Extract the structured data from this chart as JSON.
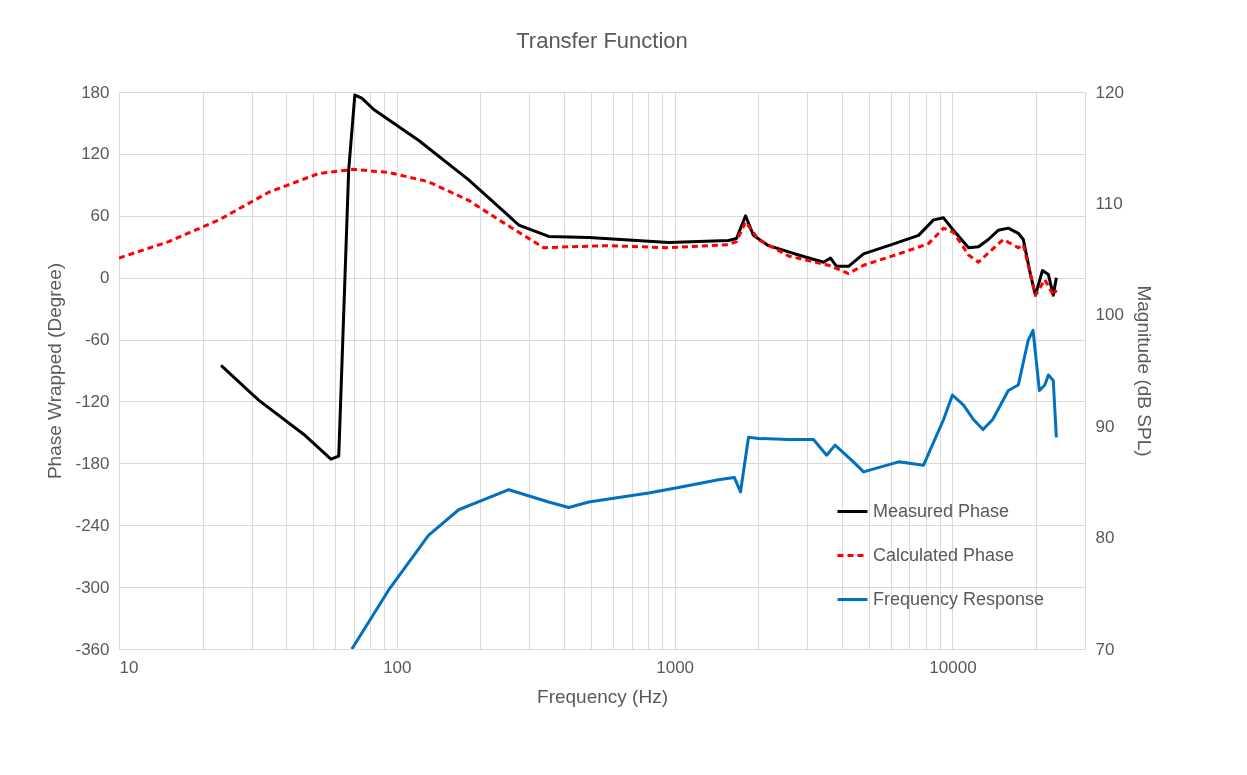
{
  "chart_data": {
    "type": "line",
    "title": "Transfer Function",
    "xlabel": "Frequency (Hz)",
    "ylabel": "Phase Wrapped (Degree)",
    "y2label": "Magnitude (dB SPL)",
    "log": "x",
    "grid": true,
    "legend": "bottom right",
    "xlim": [
      10,
      30000
    ],
    "xticks": [
      10,
      {
        "value": 20,
        "label": null
      },
      {
        "value": 30,
        "label": null
      },
      {
        "value": 40,
        "label": null
      },
      {
        "value": 50,
        "label": null
      },
      {
        "value": 60,
        "label": null
      },
      {
        "value": 70,
        "label": null
      },
      {
        "value": 80,
        "label": null
      },
      {
        "value": 90,
        "label": null
      },
      100,
      {
        "value": 200,
        "label": null
      },
      {
        "value": 300,
        "label": null
      },
      {
        "value": 400,
        "label": null
      },
      {
        "value": 500,
        "label": null
      },
      {
        "value": 600,
        "label": null
      },
      {
        "value": 700,
        "label": null
      },
      {
        "value": 800,
        "label": null
      },
      {
        "value": 900,
        "label": null
      },
      1000,
      {
        "value": 2000,
        "label": null
      },
      {
        "value": 3000,
        "label": null
      },
      {
        "value": 4000,
        "label": null
      },
      {
        "value": 5000,
        "label": null
      },
      {
        "value": 6000,
        "label": null
      },
      {
        "value": 7000,
        "label": null
      },
      {
        "value": 8000,
        "label": null
      },
      {
        "value": 9000,
        "label": null
      },
      10000,
      {
        "value": 20000,
        "label": null
      },
      {
        "value": 30000,
        "label": null
      }
    ],
    "ylim": [
      -360,
      180
    ],
    "yticks": [
      -360,
      -300,
      -240,
      -180,
      -120,
      -60,
      0,
      60,
      120,
      180
    ],
    "y2lim": [
      70,
      120
    ],
    "y2ticks": [
      70,
      80,
      90,
      100,
      110,
      120
    ],
    "series": [
      {
        "name": "Measured Phase",
        "color": "#000000",
        "line_style": "solid",
        "x": [
          23.3,
          31.9,
          46.3,
          57.9,
          61.8,
          67.1,
          70.6,
          74.8,
          82.6,
          120,
          181,
          275,
          352,
          491,
          951,
          1563,
          1670,
          1800,
          1921,
          2178,
          2793,
          3437,
          3641,
          3827,
          4227,
          4786,
          5888,
          7550,
          8550,
          9290,
          10080,
          11430,
          12410,
          13470,
          14630,
          15890,
          17260,
          17990,
          19090,
          19900,
          21090,
          22150,
          23060,
          23660
        ],
        "values": [
          -85,
          -119,
          -152,
          -176,
          -173,
          104,
          177,
          174,
          163,
          133,
          95,
          51,
          40,
          39,
          34,
          36,
          38,
          60,
          41,
          31,
          22,
          15,
          19,
          11,
          11,
          23,
          31,
          41,
          56,
          58,
          46,
          29,
          30,
          37,
          46,
          48,
          43,
          37,
          3,
          -17,
          7,
          3,
          -17,
          0
        ]
      },
      {
        "name": "Calculated Phase",
        "color": "#ff0000",
        "line_style": "dashed",
        "x": [
          10,
          15.1,
          22.9,
          34.7,
          52.4,
          70,
          93.5,
          130,
          181,
          253,
          338,
          416,
          580,
          951,
          1563,
          1670,
          1800,
          2005,
          2570,
          3580,
          4227,
          4786,
          6400,
          8200,
          9290,
          10080,
          11430,
          12410,
          13470,
          15240,
          17260,
          17990,
          19090,
          19900,
          21500,
          23060,
          23660
        ],
        "values": [
          19,
          35,
          56,
          83,
          101,
          105,
          102,
          93,
          75,
          50,
          29,
          30,
          31,
          29,
          32,
          35,
          54,
          37,
          21,
          12,
          4,
          12,
          23,
          33,
          48,
          44,
          22,
          15,
          24,
          37,
          29,
          32,
          3,
          -17,
          -2,
          -17,
          -12
        ]
      },
      {
        "name": "Frequency Response",
        "color": "#0070c0",
        "line_style": "solid",
        "axis": "y2",
        "x": [
          68.9,
          93.5,
          130,
          167,
          253,
          352,
          416,
          491,
          806,
          1032,
          1438,
          1640,
          1726,
          1845,
          2005,
          2570,
          3162,
          3524,
          3780,
          4400,
          4786,
          6400,
          7870,
          9290,
          10000,
          10960,
          11900,
          12880,
          13960,
          15890,
          17260,
          18730,
          19500,
          20560,
          21500,
          22150,
          23060,
          23660
        ],
        "values": [
          70,
          75.3,
          80.2,
          82.5,
          84.3,
          83.2,
          82.7,
          83.2,
          84.0,
          84.5,
          85.2,
          85.4,
          84.1,
          89.0,
          88.9,
          88.8,
          88.8,
          87.4,
          88.3,
          86.8,
          85.9,
          86.8,
          86.5,
          90.6,
          92.8,
          91.9,
          90.6,
          89.7,
          90.6,
          93.2,
          93.7,
          97.7,
          98.6,
          93.2,
          93.7,
          94.6,
          94.1,
          89.0
        ]
      }
    ]
  }
}
